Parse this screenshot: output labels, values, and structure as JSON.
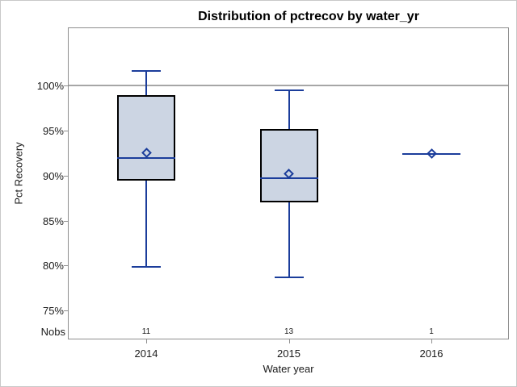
{
  "colors": {
    "line": "#1b3d9b",
    "box_fill": "#ccd5e3",
    "box_border": "#000000",
    "axis": "#8e8e8e",
    "reference_line": "#a6a6a6",
    "outer_border": "#c8c8c8"
  },
  "chart_data": {
    "type": "boxplot",
    "title": "Distribution of pctrecov by water_yr",
    "xlabel": "Water year",
    "ylabel": "Pct Recovery",
    "nobs_label": "Nobs",
    "categories": [
      "2014",
      "2015",
      "2016"
    ],
    "nobs": [
      "11",
      "13",
      "1"
    ],
    "yticks": [
      100,
      95,
      90,
      85,
      80,
      75
    ],
    "ytick_suffix": "%",
    "ylim": [
      71.9,
      106.35
    ],
    "reference_line_y": 100,
    "grid": false,
    "legend": "none",
    "series": [
      {
        "category": "2014",
        "n": 11,
        "whisker_low": 79.9,
        "q1": 89.4,
        "median": 91.9,
        "mean": 92.5,
        "q3": 98.9,
        "whisker_high": 101.6
      },
      {
        "category": "2015",
        "n": 13,
        "whisker_low": 78.7,
        "q1": 87.0,
        "median": 89.7,
        "mean": 90.2,
        "q3": 95.2,
        "whisker_high": 99.5
      },
      {
        "category": "2016",
        "n": 1,
        "whisker_low": 92.4,
        "q1": 92.4,
        "median": 92.4,
        "mean": 92.4,
        "q3": 92.4,
        "whisker_high": 92.4
      }
    ]
  }
}
